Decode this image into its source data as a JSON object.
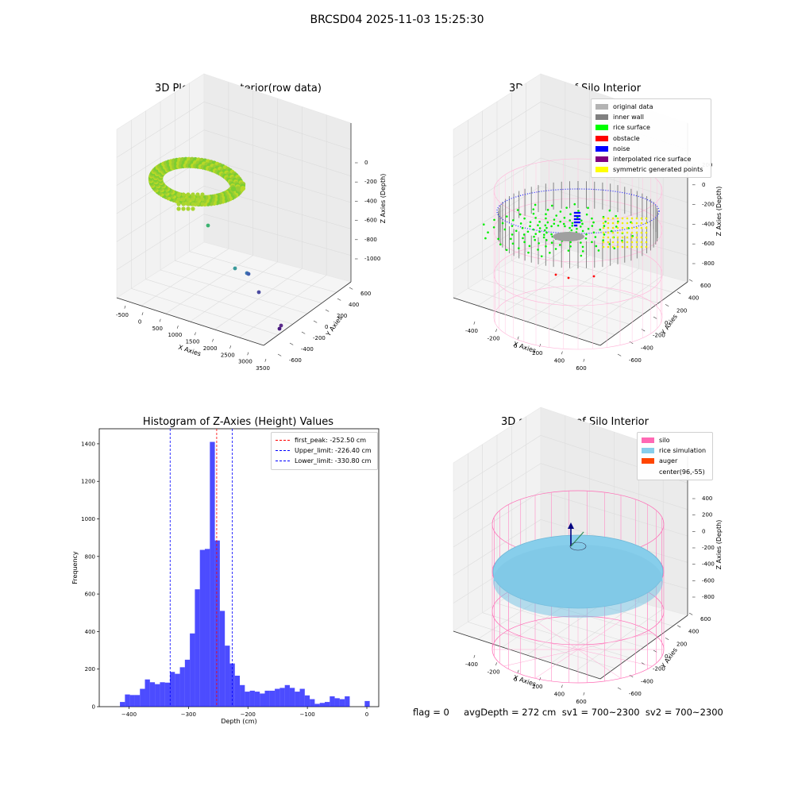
{
  "figure": {
    "suptitle": "BRCSD04 2025-11-03 15:25:30",
    "bottom_text": "flag = 0     avgDepth = 272 cm  sv1 = 700~2300  sv2 = 700~2300"
  },
  "panels": {
    "raw": {
      "title": "3D Plot of Silo Interior(row data)",
      "xlabel": "X Axies",
      "ylabel": "Y Axies",
      "zlabel": "Z Axies (Depth)",
      "xticks": [
        "-500",
        "0",
        "500",
        "1000",
        "1500",
        "2000",
        "2500",
        "3000",
        "3500"
      ],
      "yticks": [
        "-600",
        "-400",
        "-200",
        "0",
        "200",
        "400",
        "600"
      ],
      "zticks": [
        "0",
        "-200",
        "-400",
        "-600",
        "-800",
        "-1000"
      ]
    },
    "classify": {
      "title": "3D classify of Silo Interior",
      "xlabel": "X Axies",
      "ylabel": "Y Axies",
      "zlabel": "Z Axies (Depth)",
      "xticks": [
        "-400",
        "-200",
        "0",
        "200",
        "400",
        "600"
      ],
      "yticks": [
        "-600",
        "-400",
        "-200",
        "0",
        "200",
        "400",
        "600"
      ],
      "zticks": [
        "200",
        "0",
        "-200",
        "-400",
        "-600",
        "-800"
      ],
      "legend": [
        {
          "label": "original data",
          "color": "#b3b3b3"
        },
        {
          "label": "inner wall",
          "color": "#808080"
        },
        {
          "label": "rice surface",
          "color": "#00ff00"
        },
        {
          "label": "obstacle",
          "color": "#ff0000"
        },
        {
          "label": "noise",
          "color": "#0000ff"
        },
        {
          "label": "interpolated rice surface",
          "color": "#800080"
        },
        {
          "label": "symmetric generated points",
          "color": "#ffff00"
        }
      ]
    },
    "simulation": {
      "title": "3D simulation of Silo Interior",
      "xlabel": "X Axies",
      "ylabel": "Y Axies",
      "zlabel": "Z Axies (Depth)",
      "xticks": [
        "-400",
        "-200",
        "0",
        "200",
        "400",
        "600"
      ],
      "yticks": [
        "-600",
        "-400",
        "-200",
        "0",
        "200",
        "400",
        "600"
      ],
      "zticks": [
        "400",
        "200",
        "0",
        "-200",
        "-400",
        "-600",
        "-800"
      ],
      "legend": [
        {
          "label": "silo",
          "color": "#ff69b4"
        },
        {
          "label": "rice simulation",
          "color": "#87ceeb"
        },
        {
          "label": "auger",
          "color": "#ff4500"
        },
        {
          "label": "center(96,-55)",
          "color": ""
        }
      ]
    }
  },
  "chart_data": [
    {
      "type": "scatter",
      "title": "3D Plot of Silo Interior(row data)",
      "xlabel": "X Axies",
      "ylabel": "Y Axies",
      "zlabel": "Z Axies (Depth)",
      "xlim": [
        -600,
        3600
      ],
      "ylim": [
        -700,
        700
      ],
      "zlim": [
        -1100,
        50
      ]
    },
    {
      "type": "scatter",
      "title": "3D classify of Silo Interior",
      "xlabel": "X Axies",
      "ylabel": "Y Axies",
      "zlabel": "Z Axies (Depth)",
      "xlim": [
        -500,
        700
      ],
      "ylim": [
        -700,
        700
      ],
      "zlim": [
        -900,
        300
      ],
      "series": [
        {
          "name": "original data"
        },
        {
          "name": "inner wall"
        },
        {
          "name": "rice surface"
        },
        {
          "name": "obstacle"
        },
        {
          "name": "noise"
        },
        {
          "name": "interpolated rice surface"
        },
        {
          "name": "symmetric generated points"
        }
      ]
    },
    {
      "type": "bar",
      "title": "Histogram of Z-Axies (Height) Values",
      "xlabel": "Depth (cm)",
      "ylabel": "Frequency",
      "xlim": [
        -450,
        20
      ],
      "ylim": [
        0,
        1480
      ],
      "xticks": [
        -400,
        -300,
        -200,
        -100,
        0
      ],
      "yticks": [
        0,
        200,
        400,
        600,
        800,
        1000,
        1200,
        1400
      ],
      "bin_width": 8.4,
      "bin_starts": [
        -415.2,
        -406.8,
        -398.4,
        -390.0,
        -381.6,
        -373.2,
        -364.8,
        -356.4,
        -348.0,
        -339.6,
        -331.2,
        -322.8,
        -314.4,
        -306.0,
        -297.6,
        -289.2,
        -280.8,
        -272.4,
        -264.0,
        -255.6,
        -247.2,
        -238.8,
        -230.4,
        -222.0,
        -213.6,
        -205.2,
        -196.8,
        -188.4,
        -180.0,
        -171.6,
        -163.2,
        -154.8,
        -146.4,
        -138.0,
        -129.6,
        -121.2,
        -112.8,
        -104.4,
        -96.0,
        -87.6,
        -79.2,
        -70.8,
        -62.4,
        -54.0,
        -45.6,
        -37.2,
        -28.8,
        -20.4,
        -12.0,
        -3.6
      ],
      "values": [
        25,
        65,
        62,
        62,
        95,
        145,
        130,
        120,
        130,
        128,
        185,
        175,
        210,
        250,
        390,
        625,
        835,
        840,
        1410,
        885,
        510,
        325,
        230,
        165,
        115,
        80,
        85,
        80,
        70,
        85,
        85,
        95,
        100,
        115,
        100,
        80,
        95,
        60,
        40,
        15,
        20,
        25,
        55,
        45,
        40,
        55,
        0,
        0,
        0,
        30
      ],
      "lines": [
        {
          "name": "first_peak: -252.50 cm",
          "x": -252.5,
          "color": "#ff0000"
        },
        {
          "name": "Upper_limit: -226.40 cm",
          "x": -226.4,
          "color": "#0000ff"
        },
        {
          "name": "Lower_limit: -330.80 cm",
          "x": -330.8,
          "color": "#0000ff"
        }
      ],
      "bar_color": "#0000ff",
      "grid": false,
      "legend_position": "top-right"
    },
    {
      "type": "scatter",
      "title": "3D simulation of Silo Interior",
      "xlabel": "X Axies",
      "ylabel": "Y Axies",
      "zlabel": "Z Axies (Depth)",
      "xlim": [
        -500,
        700
      ],
      "ylim": [
        -700,
        700
      ],
      "zlim": [
        -900,
        450
      ],
      "series": [
        {
          "name": "silo"
        },
        {
          "name": "rice simulation"
        },
        {
          "name": "auger"
        },
        {
          "name": "center(96,-55)"
        }
      ]
    }
  ]
}
